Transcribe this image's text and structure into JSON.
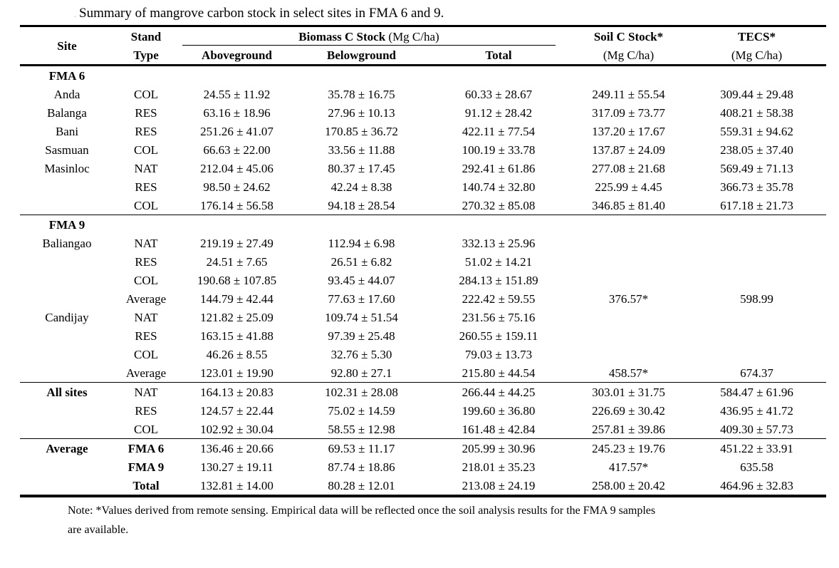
{
  "title_prefix": ".",
  "title": "Summary of mangrove carbon stock in select sites in FMA 6 and 9.",
  "table": {
    "header": {
      "site": "Site",
      "stand_line1": "Stand",
      "stand_line2": "Type",
      "biomass_name": "Biomass C Stock",
      "biomass_unit": " (Mg C/ha)",
      "aboveground": "Aboveground",
      "belowground": "Belowground",
      "total": "Total",
      "soil_name": "Soil C Stock*",
      "soil_unit": "(Mg C/ha)",
      "tecs_name": "TECS*",
      "tecs_unit": "(Mg C/ha)"
    },
    "rows": [
      {
        "site": "FMA 6",
        "site_bold": true,
        "stand": "",
        "aboveground": "",
        "belowground": "",
        "total": "",
        "soil": "",
        "tecs": ""
      },
      {
        "site": "Anda",
        "stand": "COL",
        "aboveground": "24.55 ± 11.92",
        "belowground": "35.78 ± 16.75",
        "total": "60.33 ± 28.67",
        "soil": "249.11 ± 55.54",
        "tecs": "309.44 ± 29.48"
      },
      {
        "site": "Balanga",
        "stand": "RES",
        "aboveground": "63.16 ± 18.96",
        "belowground": "27.96 ± 10.13",
        "total": "91.12 ± 28.42",
        "soil": "317.09 ± 73.77",
        "tecs": "408.21 ± 58.38"
      },
      {
        "site": "Bani",
        "stand": "RES",
        "aboveground": "251.26 ± 41.07",
        "belowground": "170.85 ± 36.72",
        "total": "422.11 ± 77.54",
        "soil": "137.20 ± 17.67",
        "tecs": "559.31 ± 94.62"
      },
      {
        "site": "Sasmuan",
        "stand": "COL",
        "aboveground": "66.63 ± 22.00",
        "belowground": "33.56 ± 11.88",
        "total": "100.19 ± 33.78",
        "soil": "137.87 ± 24.09",
        "tecs": "238.05 ± 37.40"
      },
      {
        "site": "Masinloc",
        "stand": "NAT",
        "aboveground": "212.04 ± 45.06",
        "belowground": "80.37 ± 17.45",
        "total": "292.41 ± 61.86",
        "soil": "277.08 ± 21.68",
        "tecs": "569.49 ± 71.13"
      },
      {
        "site": "",
        "stand": "RES",
        "aboveground": "98.50 ± 24.62",
        "belowground": "42.24 ± 8.38",
        "total": "140.74 ± 32.80",
        "soil": "225.99 ± 4.45",
        "tecs": "366.73 ± 35.78"
      },
      {
        "site": "",
        "stand": "COL",
        "aboveground": "176.14 ± 56.58",
        "belowground": "94.18 ± 28.54",
        "total": "270.32 ± 85.08",
        "soil": "346.85 ± 81.40",
        "tecs": "617.18 ± 21.73"
      },
      {
        "site": "FMA 9",
        "site_bold": true,
        "rule_before": true,
        "stand": "",
        "aboveground": "",
        "belowground": "",
        "total": "",
        "soil": "",
        "tecs": ""
      },
      {
        "site": "Baliangao",
        "stand": "NAT",
        "aboveground": "219.19 ± 27.49",
        "belowground": "112.94 ± 6.98",
        "total": "332.13 ± 25.96",
        "soil": "",
        "tecs": ""
      },
      {
        "site": "",
        "stand": "RES",
        "aboveground": "24.51 ± 7.65",
        "belowground": "26.51 ± 6.82",
        "total": "51.02 ± 14.21",
        "soil": "",
        "tecs": ""
      },
      {
        "site": "",
        "stand": "COL",
        "aboveground": "190.68 ± 107.85",
        "belowground": "93.45 ± 44.07",
        "total": "284.13 ± 151.89",
        "soil": "",
        "tecs": ""
      },
      {
        "site": "",
        "stand": "Average",
        "aboveground": "144.79 ± 42.44",
        "belowground": "77.63 ± 17.60",
        "total": "222.42 ± 59.55",
        "soil": "376.57*",
        "tecs": "598.99"
      },
      {
        "site": "Candijay",
        "stand": "NAT",
        "aboveground": "121.82 ± 25.09",
        "belowground": "109.74 ± 51.54",
        "total": "231.56 ± 75.16",
        "soil": "",
        "tecs": ""
      },
      {
        "site": "",
        "stand": "RES",
        "aboveground": "163.15 ± 41.88",
        "belowground": "97.39 ± 25.48",
        "total": "260.55 ± 159.11",
        "soil": "",
        "tecs": ""
      },
      {
        "site": "",
        "stand": "COL",
        "aboveground": "46.26 ± 8.55",
        "belowground": "32.76 ± 5.30",
        "total": "79.03 ± 13.73",
        "soil": "",
        "tecs": ""
      },
      {
        "site": "",
        "stand": "Average",
        "aboveground": "123.01 ± 19.90",
        "belowground": "92.80 ± 27.1",
        "total": "215.80 ± 44.54",
        "soil": "458.57*",
        "tecs": "674.37"
      },
      {
        "site": "All sites",
        "site_bold": true,
        "rule_before": true,
        "stand": "NAT",
        "aboveground": "164.13 ± 20.83",
        "belowground": "102.31 ± 28.08",
        "total": "266.44 ± 44.25",
        "soil": "303.01 ± 31.75",
        "tecs": "584.47 ± 61.96"
      },
      {
        "site": "",
        "stand": "RES",
        "aboveground": "124.57 ± 22.44",
        "belowground": "75.02 ± 14.59",
        "total": "199.60 ± 36.80",
        "soil": "226.69 ± 30.42",
        "tecs": "436.95 ± 41.72"
      },
      {
        "site": "",
        "stand": "COL",
        "aboveground": "102.92 ± 30.04",
        "belowground": "58.55 ± 12.98",
        "total": "161.48 ± 42.84",
        "soil": "257.81 ± 39.86",
        "tecs": "409.30 ± 57.73"
      },
      {
        "site": "Average",
        "site_bold": true,
        "rule_before": true,
        "stand": "FMA 6",
        "stand_bold": true,
        "aboveground": "136.46 ± 20.66",
        "belowground": "69.53 ± 11.17",
        "total": "205.99 ± 30.96",
        "soil": "245.23 ± 19.76",
        "tecs": "451.22 ± 33.91"
      },
      {
        "site": "",
        "stand": "FMA 9",
        "stand_bold": true,
        "aboveground": "130.27 ± 19.11",
        "belowground": "87.74 ± 18.86",
        "total": "218.01 ± 35.23",
        "soil": "417.57*",
        "tecs": "635.58"
      },
      {
        "site": "",
        "stand": "Total",
        "stand_bold": true,
        "aboveground": "132.81 ± 14.00",
        "belowground": "80.28 ± 12.01",
        "total": "213.08 ± 24.19",
        "soil": "258.00 ± 20.42",
        "tecs": "464.96 ± 32.83"
      }
    ]
  },
  "note": {
    "line1": "Note: *Values derived from remote sensing. Empirical data will be reflected once the soil analysis results for the FMA 9 samples",
    "line2": "are available."
  }
}
